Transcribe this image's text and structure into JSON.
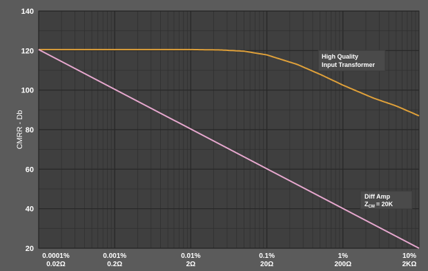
{
  "chart_data": {
    "type": "line",
    "ylabel": "CMRR - Db",
    "ylim": [
      20,
      140
    ],
    "y_ticks": [
      "140",
      "120",
      "100",
      "80",
      "60",
      "40",
      "20"
    ],
    "x_scale": "log",
    "x_ticks": [
      {
        "line1": "0.0001%",
        "line2": "0.02Ω"
      },
      {
        "line1": "0.001%",
        "line2": "0.2Ω"
      },
      {
        "line1": "0.01%",
        "line2": "2Ω"
      },
      {
        "line1": "0.1%",
        "line2": "20Ω"
      },
      {
        "line1": "1%",
        "line2": "200Ω"
      },
      {
        "line1": "10%",
        "line2": "2KΩ"
      }
    ],
    "x_values_ohm": [
      0.02,
      0.2,
      2,
      20,
      200,
      2000
    ],
    "grid": true,
    "series": [
      {
        "color": "#e0a13a",
        "x_ohm": [
          0.02,
          0.2,
          2,
          5,
          10,
          20,
          50,
          100,
          200,
          500,
          1000,
          2000
        ],
        "y_db": [
          120.5,
          120.5,
          120.5,
          120.3,
          119.7,
          117.8,
          113,
          108,
          102.5,
          96,
          92,
          87
        ]
      },
      {
        "color": "#e7a8cf",
        "x_ohm": [
          0.02,
          2000
        ],
        "y_db": [
          120.5,
          20
        ]
      }
    ],
    "annotations": [
      {
        "lines": [
          "High Quality",
          "Input Transformer"
        ]
      },
      {
        "lines": [
          "Diff Amp",
          "Z",
          "CM",
          "= 20K"
        ]
      }
    ]
  }
}
